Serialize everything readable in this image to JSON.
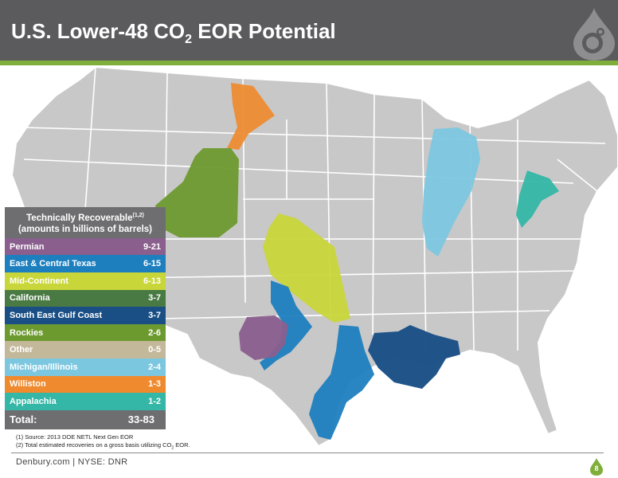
{
  "header": {
    "title_main": "U.S. Lower-48 CO",
    "title_sub": "2",
    "title_rest": " EOR Potential"
  },
  "legend": {
    "heading_line1": "Technically Recoverable",
    "heading_sup": "(1,2)",
    "heading_line2": "(amounts in billions of barrels)",
    "rows": [
      {
        "region": "Permian",
        "amount": "9-21",
        "color": "#8a5f8e"
      },
      {
        "region": "East & Central Texas",
        "amount": "6-15",
        "color": "#1e7fbf"
      },
      {
        "region": "Mid-Continent",
        "amount": "6-13",
        "color": "#c9d63a"
      },
      {
        "region": "California",
        "amount": "3-7",
        "color": "#4a7a44"
      },
      {
        "region": "South East Gulf Coast",
        "amount": "3-7",
        "color": "#1a4f86"
      },
      {
        "region": "Rockies",
        "amount": "2-6",
        "color": "#6d9a2f"
      },
      {
        "region": "Other",
        "amount": "0-5",
        "color": "#c4b89a"
      },
      {
        "region": "Michigan/Illinois",
        "amount": "2-4",
        "color": "#7cc7e0"
      },
      {
        "region": "Williston",
        "amount": "1-3",
        "color": "#ef8a2e"
      },
      {
        "region": "Appalachia",
        "amount": "1-2",
        "color": "#34b7a6"
      }
    ],
    "total_label": "Total:",
    "total_value": "33-83"
  },
  "footnotes": {
    "note1": "(1) Source: 2013 DOE NETL Next Gen EOR",
    "note2_main": "(2) Total estimated recoveries on a gross basis utilizing CO",
    "note2_sub": "2",
    "note2_end": " EOR."
  },
  "footer": {
    "company": "Denbury.com  |  NYSE: DNR",
    "page": "8"
  },
  "colors": {
    "header_bg": "#5b5b5d",
    "accent_green": "#7fae3a",
    "map_gray": "#c8c8c8"
  }
}
